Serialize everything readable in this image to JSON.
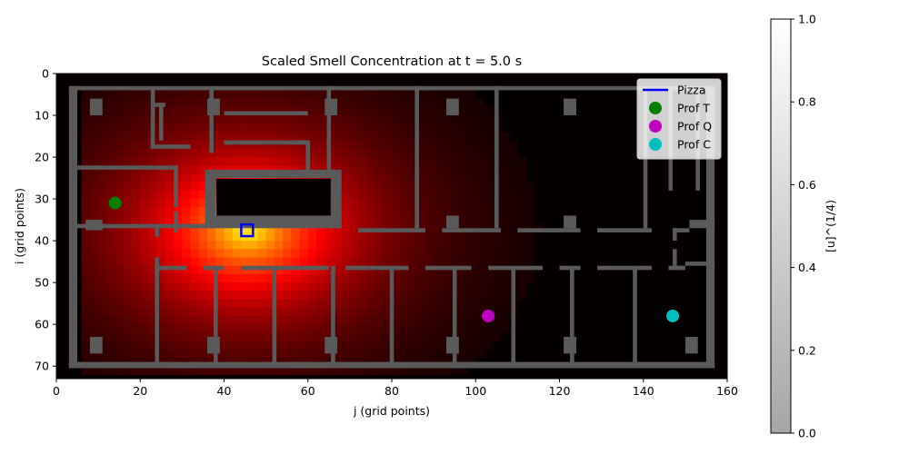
{
  "chart_data": {
    "type": "heatmap",
    "title": "Scaled Smell Concentration at t = 5.0 s",
    "xlabel": "j (grid points)",
    "ylabel": "i (grid points)",
    "xlim": [
      0,
      160
    ],
    "ylim": [
      73,
      0
    ],
    "xticks": [
      0,
      20,
      40,
      60,
      80,
      100,
      120,
      140,
      160
    ],
    "yticks": [
      0,
      10,
      20,
      30,
      40,
      50,
      60,
      70
    ],
    "grid": false,
    "colorbar": {
      "label": "[u]^(1/4)",
      "range": [
        0,
        1
      ],
      "ticks": [
        "0.0",
        "0.2",
        "0.4",
        "0.6",
        "0.8",
        "1.0"
      ]
    },
    "source": {
      "j": 45.5,
      "i": 37.5
    },
    "legend": {
      "position": "top-right",
      "entries": [
        {
          "label": "Pizza",
          "color": "#0000ff",
          "marker": "line"
        },
        {
          "label": "Prof T",
          "color": "#008000",
          "marker": "circle"
        },
        {
          "label": "Prof Q",
          "color": "#c000c0",
          "marker": "circle"
        },
        {
          "label": "Prof C",
          "color": "#00c0c0",
          "marker": "circle"
        }
      ]
    },
    "points": [
      {
        "name": "Prof T",
        "j": 14,
        "i": 31,
        "color": "#008000"
      },
      {
        "name": "Prof Q",
        "j": 103,
        "i": 58,
        "color": "#c000c0"
      },
      {
        "name": "Prof C",
        "j": 147,
        "i": 58,
        "color": "#00c0c0"
      }
    ],
    "walls": [
      [
        3,
        3,
        157,
        4
      ],
      [
        3,
        69,
        157,
        70.5
      ],
      [
        3,
        3,
        5,
        70.5
      ],
      [
        155,
        3,
        157,
        70.5
      ],
      [
        8,
        6,
        11,
        10
      ],
      [
        8,
        63,
        11,
        67
      ],
      [
        36,
        6,
        39,
        10
      ],
      [
        64,
        6,
        67,
        10
      ],
      [
        93,
        6,
        96,
        10
      ],
      [
        121,
        6,
        124,
        10
      ],
      [
        36,
        63,
        39,
        67
      ],
      [
        64,
        63,
        67,
        67
      ],
      [
        93,
        63,
        96,
        67
      ],
      [
        121,
        63,
        124,
        67
      ],
      [
        150,
        63,
        153,
        67
      ],
      [
        93,
        34,
        96,
        37
      ],
      [
        121,
        34,
        124,
        37
      ],
      [
        7,
        35,
        11,
        37.5
      ],
      [
        35.5,
        23,
        67.5,
        25
      ],
      [
        35.5,
        23,
        38,
        37
      ],
      [
        65.5,
        23,
        68,
        37
      ],
      [
        35.5,
        34,
        68,
        37
      ],
      [
        22.5,
        3,
        23.5,
        18
      ],
      [
        22.5,
        17,
        32,
        18
      ],
      [
        24.5,
        7,
        25.5,
        16
      ],
      [
        23,
        7,
        26,
        8
      ],
      [
        36.5,
        3,
        37.5,
        19
      ],
      [
        40,
        9,
        60,
        10
      ],
      [
        40,
        16,
        60,
        17
      ],
      [
        59.5,
        16,
        60.5,
        24
      ],
      [
        64.5,
        3,
        65.5,
        23
      ],
      [
        85.5,
        3,
        86.5,
        37
      ],
      [
        104.5,
        3,
        105.5,
        37
      ],
      [
        140,
        3,
        141,
        37
      ],
      [
        146,
        3,
        147,
        28
      ],
      [
        152.5,
        3,
        153.5,
        28
      ],
      [
        5,
        22,
        29,
        23
      ],
      [
        28,
        22,
        29,
        32
      ],
      [
        28,
        33,
        29,
        38
      ],
      [
        5,
        36,
        29,
        37
      ],
      [
        29,
        36,
        37,
        37
      ],
      [
        23.5,
        36,
        24.5,
        39
      ],
      [
        72,
        37,
        88,
        38
      ],
      [
        92,
        37,
        106,
        38
      ],
      [
        110,
        37,
        125,
        38
      ],
      [
        129,
        37,
        142,
        38
      ],
      [
        147,
        37,
        151,
        38
      ],
      [
        147,
        37,
        148,
        40
      ],
      [
        151,
        35,
        157,
        37
      ],
      [
        147,
        42,
        148,
        46
      ],
      [
        147,
        46,
        150,
        47
      ],
      [
        150,
        45,
        157,
        46
      ],
      [
        23.5,
        44,
        24.5,
        70
      ],
      [
        24,
        46,
        31,
        47
      ],
      [
        35,
        46,
        40,
        47
      ],
      [
        44,
        46,
        65,
        47
      ],
      [
        69,
        46,
        74,
        47
      ],
      [
        72,
        46,
        84,
        47
      ],
      [
        88,
        46,
        99,
        47
      ],
      [
        103,
        46,
        116,
        47
      ],
      [
        120,
        46,
        125,
        47
      ],
      [
        129,
        46,
        142,
        47
      ],
      [
        146,
        46,
        150,
        47
      ],
      [
        37.5,
        46,
        38.5,
        70
      ],
      [
        51.5,
        46,
        52.5,
        70
      ],
      [
        65.5,
        46,
        66.5,
        70
      ],
      [
        79.5,
        46,
        80.5,
        70
      ],
      [
        94.5,
        46,
        95.5,
        70
      ],
      [
        108.5,
        46,
        109.5,
        70
      ],
      [
        122.5,
        46,
        123.5,
        70
      ],
      [
        137.5,
        46,
        138.5,
        70
      ]
    ]
  }
}
